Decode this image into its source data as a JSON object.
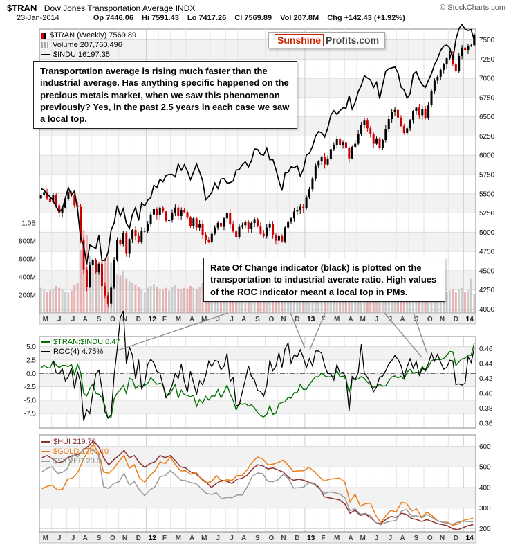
{
  "header": {
    "symbol": "$TRAN",
    "title": "Dow Jones Transportation Average INDX",
    "copyright": "© StockCharts.com",
    "date": "23-Jan-2014",
    "fields": [
      {
        "label": "Op",
        "value": "7446.06"
      },
      {
        "label": "Hi",
        "value": "7591.43"
      },
      {
        "label": "Lo",
        "value": "7417.26"
      },
      {
        "label": "Cl",
        "value": "7569.89"
      },
      {
        "label": "Vol",
        "value": "207.8M"
      },
      {
        "label": "Chg",
        "value": "+142.43 (+1.92%)"
      }
    ]
  },
  "watermark": {
    "part1": "Sunshine",
    "part2": "Profits.com"
  },
  "legends": {
    "main": {
      "tran": "$TRAN (Weekly) 7569.89",
      "volume": "Volume 207,760,496",
      "indu": "$INDU 16197.35"
    },
    "roc": {
      "ratio": "$TRAN:$INDU 0.47",
      "roc": "ROC(4) 4.75%"
    },
    "pm": {
      "hui": "$HUI 219.70",
      "gold": "$GOLD 1264.10",
      "silver": "$SILVER 20.00"
    }
  },
  "annotations": {
    "box1": "Transportation average is rising much faster than the industrial average. Has anything specific happened on the precious metals market, when we saw this phenomenon previously? Yes, in the past 2.5 years in each case we saw a local top.",
    "box2": "Rate Of Change indicator (black) is plotted on the transportation to industrial averate ratio. High values of the ROC indicator meant a local top in PMs."
  },
  "colors": {
    "up": "#000000",
    "down": "#cc0000",
    "indu": "#000000",
    "ratio": "#007000",
    "roc": "#000000",
    "hui": "#8b3232",
    "gold": "#ec7c14",
    "silver": "#999999",
    "volume_up": "#c8c8c8",
    "volume_down": "#e6a8a8"
  },
  "chart_data": [
    {
      "panel": "price",
      "type": "candlestick",
      "title": "$TRAN (Weekly) with $INDU overlay and volume",
      "x_labels": [
        "M",
        "J",
        "J",
        "A",
        "S",
        "O",
        "N",
        "D",
        "12",
        "F",
        "M",
        "A",
        "M",
        "J",
        "J",
        "A",
        "S",
        "O",
        "N",
        "D",
        "13",
        "F",
        "M",
        "A",
        "M",
        "J",
        "J",
        "A",
        "S",
        "O",
        "N",
        "D",
        "14"
      ],
      "x_label_weeks": [
        4,
        5,
        4,
        4,
        5,
        4,
        4,
        5,
        4,
        4,
        5,
        4,
        4,
        5,
        4,
        4,
        5,
        4,
        4,
        5,
        4,
        4,
        5,
        4,
        4,
        5,
        4,
        4,
        5,
        4,
        4,
        5,
        4
      ],
      "y_axis_right": {
        "ticks": [
          7500,
          7250,
          7000,
          6750,
          6500,
          6250,
          6000,
          5750,
          5500,
          5250,
          5000,
          4750,
          4500,
          4250,
          4000
        ],
        "range": [
          3950,
          7640
        ]
      },
      "volume_axis": {
        "tick_labels": [
          "1.0B",
          "800M",
          "600M",
          "400M",
          "200M"
        ],
        "tick_values": [
          1000,
          800,
          600,
          400,
          200
        ],
        "units": "millions"
      },
      "indu_overlay_map": {
        "from": [
          10700,
          16250
        ],
        "to": [
          4520,
          7520
        ]
      },
      "series": {
        "tran_close": [
          5480,
          5520,
          5440,
          5400,
          5480,
          5350,
          5250,
          5320,
          5430,
          5520,
          5480,
          5350,
          5330,
          4900,
          4510,
          4290,
          4580,
          4640,
          4480,
          4590,
          4300,
          4180,
          4070,
          4280,
          4640,
          4900,
          4850,
          4990,
          4720,
          4910,
          5030,
          4950,
          4870,
          5020,
          5020,
          5110,
          5230,
          5300,
          5220,
          5320,
          5270,
          5150,
          5160,
          5250,
          5320,
          5210,
          5290,
          5260,
          5190,
          5080,
          5180,
          5060,
          5110,
          4960,
          4900,
          4870,
          4980,
          5060,
          5120,
          5070,
          5180,
          5250,
          5100,
          5010,
          4940,
          5070,
          5090,
          5130,
          5040,
          5120,
          5170,
          5080,
          4980,
          4950,
          5060,
          5110,
          4960,
          4890,
          4950,
          4880,
          5060,
          5140,
          5180,
          5270,
          5290,
          5330,
          5310,
          5450,
          5560,
          5700,
          5870,
          5920,
          5980,
          5880,
          5950,
          6080,
          6130,
          6210,
          6130,
          6170,
          6100,
          5960,
          6110,
          6150,
          6280,
          6390,
          6450,
          6350,
          6280,
          6150,
          6220,
          6100,
          6200,
          6340,
          6470,
          6560,
          6590,
          6490,
          6380,
          6290,
          6350,
          6450,
          6570,
          6620,
          6520,
          6600,
          6480,
          6650,
          6830,
          6970,
          7020,
          7110,
          7180,
          7260,
          7310,
          7180,
          7100,
          7290,
          7400,
          7370,
          7420,
          7430,
          7570
        ],
        "indu_close": [
          12640,
          12600,
          12510,
          12440,
          12350,
          12200,
          12080,
          12150,
          12410,
          12660,
          12480,
          12580,
          12140,
          11440,
          11270,
          10820,
          11280,
          11240,
          11200,
          11510,
          10910,
          10910,
          11100,
          11640,
          11810,
          12230,
          11980,
          12150,
          11800,
          11680,
          12020,
          12180,
          11870,
          12290,
          12220,
          12360,
          12420,
          12720,
          12660,
          12860,
          12800,
          12950,
          12980,
          12980,
          12920,
          13230,
          13080,
          13210,
          13060,
          12850,
          13030,
          13230,
          13040,
          12820,
          12370,
          12450,
          12550,
          12770,
          12640,
          12870,
          12880,
          12770,
          12780,
          12820,
          13080,
          13100,
          13210,
          13280,
          13160,
          13310,
          13590,
          13580,
          13460,
          13440,
          13610,
          13330,
          13340,
          13100,
          12820,
          12590,
          13010,
          13030,
          13160,
          13140,
          13190,
          12940,
          13100,
          13440,
          13490,
          13650,
          13900,
          14010,
          13980,
          13880,
          14090,
          14400,
          14510,
          14420,
          14510,
          14580,
          14570,
          14870,
          14550,
          14710,
          14970,
          15120,
          15350,
          15300,
          15250,
          15070,
          15190,
          14800,
          15130,
          15460,
          15520,
          15540,
          15560,
          15420,
          15080,
          15010,
          14810,
          14920,
          15380,
          15450,
          15260,
          15130,
          15070,
          15240,
          15400,
          15620,
          15760,
          15960,
          16060,
          16090,
          16020,
          15750,
          16220,
          16480,
          16580,
          16470,
          16440,
          16460,
          16197
        ],
        "volume_millions": [
          280,
          260,
          240,
          250,
          270,
          300,
          280,
          260,
          240,
          230,
          250,
          310,
          330,
          700,
          920,
          860,
          640,
          520,
          560,
          480,
          590,
          610,
          640,
          560,
          480,
          430,
          420,
          460,
          380,
          350,
          340,
          310,
          290,
          260,
          230,
          280,
          300,
          320,
          290,
          270,
          260,
          280,
          250,
          290,
          310,
          270,
          260,
          280,
          270,
          300,
          280,
          260,
          290,
          330,
          360,
          340,
          350,
          320,
          300,
          310,
          280,
          270,
          290,
          310,
          300,
          260,
          240,
          230,
          220,
          250,
          270,
          260,
          280,
          300,
          290,
          310,
          330,
          320,
          340,
          360,
          310,
          280,
          270,
          290,
          260,
          310,
          330,
          320,
          340,
          310,
          290,
          300,
          320,
          310,
          280,
          270,
          260,
          280,
          250,
          240,
          280,
          310,
          290,
          270,
          280,
          300,
          320,
          290,
          310,
          340,
          330,
          300,
          320,
          280,
          270,
          260,
          250,
          240,
          230,
          250,
          260,
          270,
          290,
          280,
          300,
          260,
          280,
          320,
          300,
          290,
          260,
          250,
          240,
          230,
          250,
          270,
          230,
          260,
          280,
          230,
          250,
          380,
          208
        ]
      }
    },
    {
      "panel": "ratio_roc",
      "type": "line",
      "derived": {
        "ratio": "tran_close divided by indu_close (green line, right axis)",
        "roc": "percent change of ratio vs 4 weeks earlier (black line, left axis)"
      },
      "y_axis_left": {
        "tick_labels": [
          "5.0",
          "2.5",
          "0.0",
          "-2.5",
          "-5.0",
          "-7.5"
        ],
        "tick_values": [
          5,
          2.5,
          0,
          -2.5,
          -5,
          -7.5
        ],
        "range": [
          -10.2,
          6.9
        ]
      },
      "y_axis_right": {
        "tick_labels": [
          "0.46",
          "0.44",
          "0.42",
          "0.40",
          "0.38",
          "0.36"
        ],
        "tick_values": [
          0.46,
          0.44,
          0.42,
          0.4,
          0.38,
          0.36
        ],
        "range": [
          0.3535,
          0.4765
        ]
      },
      "zero_line": 0
    },
    {
      "panel": "precious_metals",
      "type": "line",
      "y_axis_right": {
        "ticks": [
          600,
          500,
          400,
          300,
          200
        ],
        "range": [
          185,
          655
        ]
      },
      "series": [
        {
          "name": "$HUI",
          "last": 219.7,
          "color_key": "hui",
          "fit": [
            185,
            655
          ],
          "values": [
            545,
            555,
            540,
            520,
            525,
            545,
            555,
            560,
            580,
            600,
            625,
            600,
            545,
            510,
            535,
            555,
            580,
            545,
            555,
            520,
            498,
            515,
            525,
            555,
            545,
            555,
            530,
            500,
            495,
            475,
            465,
            445,
            425,
            400,
            420,
            435,
            430,
            420,
            440,
            445,
            460,
            490,
            510,
            505,
            490,
            495,
            485,
            475,
            450,
            435,
            440,
            435,
            425,
            420,
            400,
            355,
            350,
            345,
            340,
            320,
            275,
            290,
            265,
            270,
            255,
            230,
            225,
            245,
            260,
            255,
            275,
            270,
            250,
            245,
            235,
            245,
            235,
            225,
            220,
            215,
            200,
            195,
            205,
            215,
            219.7
          ]
        },
        {
          "name": "$GOLD",
          "last": 1264.1,
          "color_key": "gold",
          "fit": [
            1150,
            1960
          ],
          "values": [
            1510,
            1530,
            1540,
            1500,
            1505,
            1590,
            1600,
            1650,
            1750,
            1830,
            1880,
            1810,
            1650,
            1640,
            1680,
            1740,
            1790,
            1680,
            1710,
            1600,
            1565,
            1620,
            1660,
            1735,
            1720,
            1775,
            1710,
            1660,
            1660,
            1630,
            1650,
            1590,
            1560,
            1570,
            1620,
            1570,
            1585,
            1580,
            1620,
            1620,
            1670,
            1735,
            1775,
            1760,
            1710,
            1715,
            1730,
            1750,
            1705,
            1655,
            1660,
            1660,
            1690,
            1655,
            1610,
            1575,
            1590,
            1595,
            1600,
            1565,
            1400,
            1465,
            1365,
            1385,
            1390,
            1290,
            1225,
            1285,
            1330,
            1315,
            1395,
            1390,
            1325,
            1340,
            1270,
            1315,
            1285,
            1245,
            1230,
            1230,
            1205,
            1215,
            1245,
            1255,
            1264
          ]
        },
        {
          "name": "$SILVER",
          "last": 20.0,
          "color_key": "silver",
          "fit": [
            17,
            46
          ],
          "values": [
            35,
            36,
            36.5,
            34.5,
            34.8,
            36,
            40,
            39.5,
            41.5,
            42,
            41.5,
            40,
            30.5,
            30,
            31.5,
            32,
            34.5,
            31,
            32,
            29.5,
            27.8,
            29.5,
            30.5,
            33.5,
            33.8,
            35.3,
            34,
            32.5,
            32.3,
            31.7,
            31.4,
            30,
            28.5,
            28.2,
            28.6,
            26.9,
            27.3,
            27.2,
            28,
            28,
            30.5,
            33.7,
            34.6,
            34.4,
            32.1,
            32,
            32.6,
            34.2,
            33,
            30.1,
            30.2,
            30.4,
            31.7,
            31.2,
            29.9,
            28.5,
            28.9,
            28.7,
            28.3,
            27.2,
            23.3,
            23.9,
            22.3,
            22.5,
            21.8,
            19.8,
            19.1,
            19.8,
            20.2,
            20.4,
            23.2,
            23.7,
            21.7,
            21.8,
            21.2,
            22.2,
            21.3,
            20.3,
            19.9,
            19.6,
            19.3,
            19.9,
            20.2,
            20.1,
            20.0
          ]
        }
      ]
    }
  ]
}
